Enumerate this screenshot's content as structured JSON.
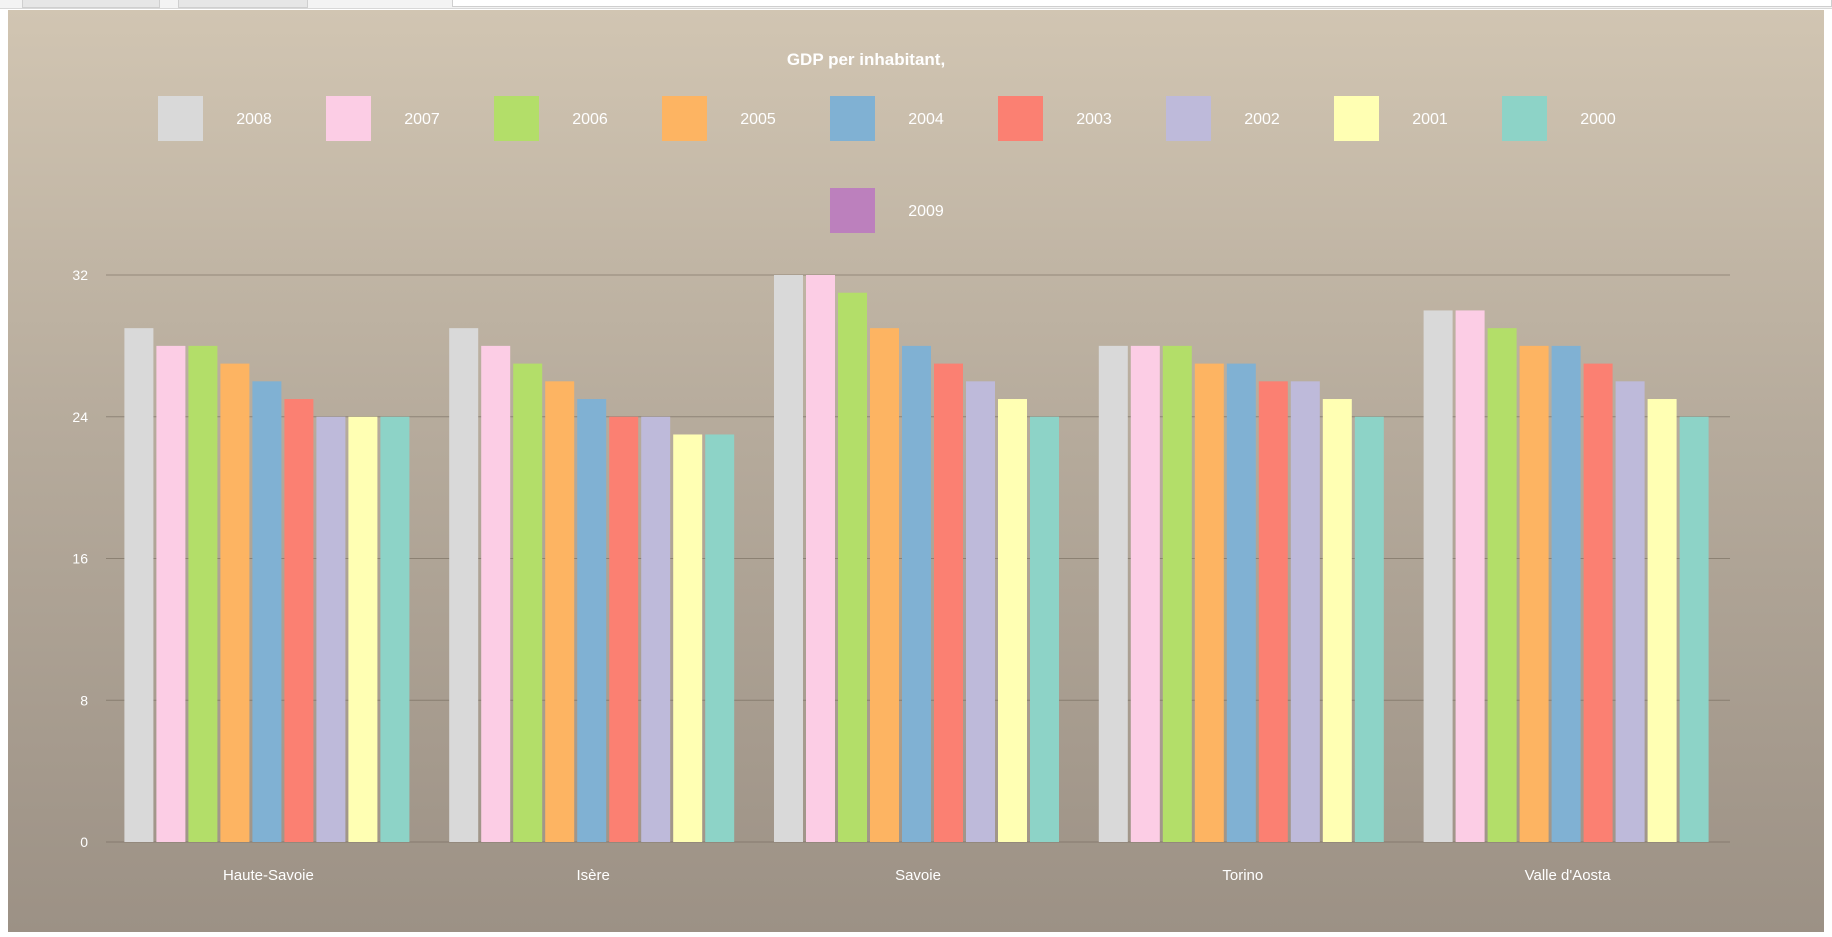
{
  "chart_data": {
    "type": "bar",
    "title": "GDP per inhabitant,",
    "xlabel": "",
    "ylabel": "",
    "ylim": [
      0,
      32
    ],
    "yticks": [
      0,
      8,
      16,
      24,
      32
    ],
    "grid": true,
    "legend_position": "top",
    "categories": [
      "Haute-Savoie",
      "Isère",
      "Savoie",
      "Torino",
      "Valle d'Aosta"
    ],
    "legend_order": [
      "2008",
      "2007",
      "2006",
      "2005",
      "2004",
      "2003",
      "2002",
      "2001",
      "2000",
      "2009"
    ],
    "series": [
      {
        "name": "2008",
        "color": "#d9d9d9",
        "values": [
          29,
          29,
          32,
          28,
          30
        ]
      },
      {
        "name": "2007",
        "color": "#fccde5",
        "values": [
          28,
          28,
          32,
          28,
          30
        ]
      },
      {
        "name": "2006",
        "color": "#b3de69",
        "values": [
          28,
          27,
          31,
          28,
          29
        ]
      },
      {
        "name": "2005",
        "color": "#fdb462",
        "values": [
          27,
          26,
          29,
          27,
          28
        ]
      },
      {
        "name": "2004",
        "color": "#80b1d3",
        "values": [
          26,
          25,
          28,
          27,
          28
        ]
      },
      {
        "name": "2003",
        "color": "#fb8072",
        "values": [
          25,
          24,
          27,
          26,
          27
        ]
      },
      {
        "name": "2002",
        "color": "#bebada",
        "values": [
          24,
          24,
          26,
          26,
          26
        ]
      },
      {
        "name": "2001",
        "color": "#ffffb3",
        "values": [
          24,
          23,
          25,
          25,
          25
        ]
      },
      {
        "name": "2000",
        "color": "#8dd3c7",
        "values": [
          24,
          23,
          24,
          24,
          24
        ]
      },
      {
        "name": "2009",
        "color": "#bc80bd",
        "values": [
          null,
          null,
          null,
          null,
          null
        ]
      }
    ]
  }
}
